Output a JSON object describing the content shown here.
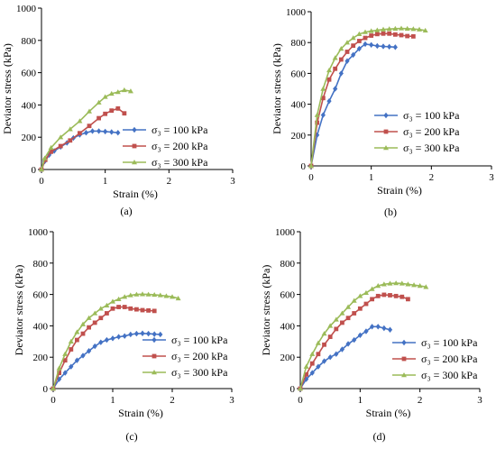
{
  "chart_data": [
    {
      "type": "line",
      "panel_label": "(a)",
      "xlabel": "Strain (%)",
      "ylabel": "Deviator stress (kPa)",
      "xlim": [
        0,
        3
      ],
      "ylim": [
        0,
        1000
      ],
      "xticks": [
        "0",
        "1",
        "2",
        "3"
      ],
      "yticks": [
        "0",
        "200",
        "400",
        "600",
        "800",
        "1000"
      ],
      "legend_position": "right",
      "series": [
        {
          "name": "σ₃ = 100 kPa",
          "color": "#4472C4",
          "marker": "diamond",
          "x": [
            0,
            0.05,
            0.12,
            0.2,
            0.3,
            0.4,
            0.5,
            0.6,
            0.7,
            0.8,
            0.9,
            1.0,
            1.1,
            1.2
          ],
          "y": [
            0,
            50,
            90,
            115,
            140,
            165,
            195,
            215,
            228,
            238,
            238,
            235,
            232,
            228
          ]
        },
        {
          "name": "σ₃ = 200 kPa",
          "color": "#C0504D",
          "marker": "square",
          "x": [
            0,
            0.06,
            0.15,
            0.3,
            0.45,
            0.6,
            0.75,
            0.9,
            1.0,
            1.1,
            1.2,
            1.3
          ],
          "y": [
            0,
            60,
            110,
            145,
            180,
            225,
            270,
            318,
            345,
            365,
            378,
            348
          ]
        },
        {
          "name": "σ₃ = 300 kPa",
          "color": "#9BBB59",
          "marker": "triangle",
          "x": [
            0,
            0.05,
            0.15,
            0.3,
            0.45,
            0.6,
            0.75,
            0.9,
            1.0,
            1.1,
            1.2,
            1.3,
            1.4
          ],
          "y": [
            0,
            70,
            135,
            200,
            250,
            300,
            360,
            415,
            450,
            470,
            480,
            492,
            485
          ]
        }
      ]
    },
    {
      "type": "line",
      "panel_label": "(b)",
      "xlabel": "Strain (%)",
      "ylabel": "Deviator stress (kPa)",
      "xlim": [
        0,
        3
      ],
      "ylim": [
        0,
        1000
      ],
      "xticks": [
        "0",
        "1",
        "2",
        "3"
      ],
      "yticks": [
        "0",
        "200",
        "400",
        "600",
        "800",
        "1000"
      ],
      "legend_position": "bottom-right",
      "series": [
        {
          "name": "σ₃ = 100 kPa",
          "color": "#4472C4",
          "marker": "diamond",
          "x": [
            0,
            0.1,
            0.2,
            0.3,
            0.4,
            0.5,
            0.6,
            0.7,
            0.8,
            0.9,
            1.0,
            1.1,
            1.2,
            1.3,
            1.4
          ],
          "y": [
            0,
            200,
            330,
            420,
            500,
            600,
            680,
            720,
            760,
            790,
            785,
            778,
            775,
            773,
            770
          ]
        },
        {
          "name": "σ₃ = 200 kPa",
          "color": "#C0504D",
          "marker": "square",
          "x": [
            0,
            0.1,
            0.2,
            0.3,
            0.4,
            0.5,
            0.6,
            0.7,
            0.8,
            0.9,
            1.0,
            1.1,
            1.2,
            1.3,
            1.4,
            1.5,
            1.6,
            1.7
          ],
          "y": [
            0,
            280,
            440,
            560,
            630,
            690,
            740,
            780,
            810,
            830,
            845,
            855,
            858,
            858,
            852,
            848,
            842,
            840
          ]
        },
        {
          "name": "σ₃ = 300 kPa",
          "color": "#9BBB59",
          "marker": "triangle",
          "x": [
            0,
            0.1,
            0.2,
            0.3,
            0.4,
            0.5,
            0.6,
            0.7,
            0.8,
            0.9,
            1.0,
            1.1,
            1.2,
            1.3,
            1.4,
            1.5,
            1.6,
            1.7,
            1.8,
            1.9
          ],
          "y": [
            0,
            330,
            500,
            620,
            700,
            760,
            800,
            830,
            855,
            868,
            875,
            880,
            885,
            888,
            890,
            892,
            890,
            888,
            885,
            878
          ]
        }
      ]
    },
    {
      "type": "line",
      "panel_label": "(c)",
      "xlabel": "Strain (%)",
      "ylabel": "Deviator stress (kPa)",
      "xlim": [
        0,
        3
      ],
      "ylim": [
        0,
        1000
      ],
      "xticks": [
        "0",
        "1",
        "2",
        "3"
      ],
      "yticks": [
        "0",
        "200",
        "400",
        "600",
        "800",
        "1000"
      ],
      "legend_position": "bottom-right",
      "series": [
        {
          "name": "σ₃ = 100 kPa",
          "color": "#4472C4",
          "marker": "diamond",
          "x": [
            0,
            0.1,
            0.2,
            0.3,
            0.4,
            0.5,
            0.6,
            0.7,
            0.8,
            0.9,
            1.0,
            1.1,
            1.2,
            1.3,
            1.4,
            1.5,
            1.6,
            1.7,
            1.8
          ],
          "y": [
            0,
            60,
            100,
            140,
            180,
            210,
            240,
            270,
            295,
            310,
            320,
            330,
            335,
            345,
            350,
            352,
            350,
            347,
            345
          ]
        },
        {
          "name": "σ₃ = 200 kPa",
          "color": "#C0504D",
          "marker": "square",
          "x": [
            0,
            0.1,
            0.2,
            0.3,
            0.4,
            0.5,
            0.6,
            0.7,
            0.8,
            0.9,
            1.0,
            1.1,
            1.2,
            1.3,
            1.4,
            1.5,
            1.6,
            1.7
          ],
          "y": [
            0,
            100,
            180,
            250,
            310,
            350,
            390,
            420,
            450,
            480,
            510,
            520,
            520,
            510,
            505,
            500,
            498,
            495
          ]
        },
        {
          "name": "σ₃ = 300 kPa",
          "color": "#9BBB59",
          "marker": "triangle",
          "x": [
            0,
            0.1,
            0.2,
            0.3,
            0.4,
            0.5,
            0.6,
            0.7,
            0.8,
            0.9,
            1.0,
            1.1,
            1.2,
            1.3,
            1.4,
            1.5,
            1.6,
            1.7,
            1.8,
            1.9,
            2.0,
            2.1
          ],
          "y": [
            0,
            130,
            220,
            300,
            360,
            410,
            450,
            480,
            510,
            530,
            555,
            570,
            585,
            595,
            600,
            602,
            600,
            598,
            595,
            590,
            585,
            575
          ]
        }
      ]
    },
    {
      "type": "line",
      "panel_label": "(d)",
      "xlabel": "Strain (%)",
      "ylabel": "Deviator stress (kPa)",
      "xlim": [
        0,
        3
      ],
      "ylim": [
        0,
        1000
      ],
      "xticks": [
        "0",
        "1",
        "2",
        "3"
      ],
      "yticks": [
        "0",
        "200",
        "400",
        "600",
        "800",
        "1000"
      ],
      "legend_position": "bottom-right",
      "series": [
        {
          "name": "σ₃ = 100 kPa",
          "color": "#4472C4",
          "marker": "diamond",
          "x": [
            0,
            0.1,
            0.2,
            0.3,
            0.4,
            0.5,
            0.6,
            0.7,
            0.8,
            0.9,
            1.0,
            1.1,
            1.2,
            1.3,
            1.4,
            1.5
          ],
          "y": [
            0,
            60,
            100,
            140,
            175,
            200,
            220,
            250,
            285,
            310,
            340,
            365,
            395,
            395,
            385,
            375
          ]
        },
        {
          "name": "σ₃ = 200 kPa",
          "color": "#C0504D",
          "marker": "square",
          "x": [
            0,
            0.1,
            0.2,
            0.3,
            0.4,
            0.5,
            0.6,
            0.7,
            0.8,
            0.9,
            1.0,
            1.1,
            1.2,
            1.3,
            1.4,
            1.5,
            1.6,
            1.7,
            1.8
          ],
          "y": [
            0,
            90,
            160,
            220,
            280,
            330,
            380,
            420,
            450,
            480,
            510,
            540,
            570,
            590,
            598,
            595,
            590,
            585,
            570
          ]
        },
        {
          "name": "σ₃ = 300 kPa",
          "color": "#9BBB59",
          "marker": "triangle",
          "x": [
            0,
            0.1,
            0.2,
            0.3,
            0.4,
            0.5,
            0.6,
            0.7,
            0.8,
            0.9,
            1.0,
            1.1,
            1.2,
            1.3,
            1.4,
            1.5,
            1.6,
            1.7,
            1.8,
            1.9,
            2.0,
            2.1
          ],
          "y": [
            0,
            140,
            220,
            290,
            350,
            400,
            440,
            480,
            520,
            560,
            590,
            610,
            635,
            655,
            665,
            670,
            672,
            670,
            665,
            660,
            655,
            648
          ]
        }
      ]
    }
  ]
}
